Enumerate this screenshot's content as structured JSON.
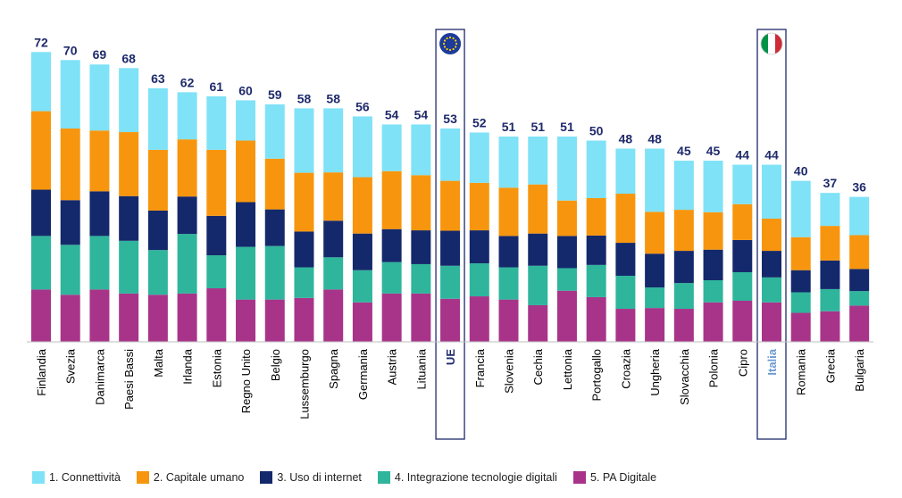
{
  "chart_data": {
    "type": "bar",
    "stacked": true,
    "title": "",
    "xlabel": "",
    "ylabel": "",
    "ylim": [
      0,
      72
    ],
    "grid": false,
    "legend_position": "bottom",
    "categories": [
      "Finlandia",
      "Svezia",
      "Danimarca",
      "Paesi Bassi",
      "Malta",
      "Irlanda",
      "Estonia",
      "Regno Unito",
      "Belgio",
      "Lussemburgo",
      "Spagna",
      "Germania",
      "Austria",
      "Lituania",
      "UE",
      "Francia",
      "Slovenia",
      "Cechia",
      "Lettonia",
      "Portogallo",
      "Croazia",
      "Ungheria",
      "Slovacchia",
      "Polonia",
      "Cipro",
      "Italia",
      "Romania",
      "Grecia",
      "Bulgaria"
    ],
    "totals": [
      72,
      70,
      69,
      68,
      63,
      62,
      61,
      60,
      59,
      58,
      58,
      56,
      54,
      54,
      53,
      52,
      51,
      51,
      51,
      50,
      48,
      48,
      45,
      45,
      44,
      44,
      40,
      37,
      36
    ],
    "total_labels": [
      "72",
      "70",
      "69",
      "68",
      "63",
      "62",
      "61",
      "60",
      "59",
      "58",
      "58",
      "56",
      "54",
      "54",
      "53",
      "52",
      "51",
      "51",
      "51",
      "50",
      "48",
      "48",
      "45",
      "45",
      "44",
      "44",
      "40",
      "37",
      "36"
    ],
    "highlight": {
      "eu": "UE",
      "italy": "Italia"
    },
    "series": [
      {
        "name": "5. PA Digitale",
        "color": "#a8348a",
        "values": [
          13,
          11.7,
          13,
          12,
          11.7,
          12,
          13.3,
          10.5,
          10.5,
          10.9,
          13,
          9.8,
          12,
          12,
          10.7,
          11.3,
          10.5,
          9.1,
          12.7,
          11.1,
          8.2,
          8.4,
          8.2,
          9.8,
          10.2,
          9.8,
          7.2,
          7.6,
          9
        ]
      },
      {
        "name": "4. Integrazione tecnologie digitali",
        "color": "#2fb59c",
        "values": [
          13.3,
          12.4,
          13.3,
          13.1,
          11.1,
          14.8,
          8.2,
          13.1,
          13.3,
          7.6,
          8,
          8,
          7.8,
          7.3,
          8.2,
          8.2,
          8,
          9.8,
          5.6,
          8,
          8.2,
          5.1,
          6.4,
          5.5,
          7.1,
          6.2,
          5.1,
          5.5,
          3.6
        ]
      },
      {
        "name": "3. Uso di internet",
        "color": "#14296b",
        "values": [
          11.5,
          11.1,
          11.1,
          11.1,
          9.8,
          9.3,
          9.8,
          11.1,
          9.1,
          8.9,
          9.1,
          9.1,
          8.2,
          8.4,
          8.7,
          8.2,
          7.8,
          8,
          8,
          7.3,
          8.2,
          8.4,
          8,
          7.6,
          8,
          6.6,
          5.5,
          7.1,
          5.5
        ]
      },
      {
        "name": "2. Capitale umano",
        "color": "#f7960e",
        "values": [
          19.5,
          17.8,
          15.1,
          15.9,
          15.1,
          14.2,
          16.4,
          15.3,
          12.6,
          14.6,
          12,
          14,
          14.4,
          13.7,
          12.4,
          11.8,
          12,
          12.2,
          8.8,
          9.3,
          12.2,
          10.4,
          10.2,
          9.3,
          8.9,
          8,
          8.2,
          8.6,
          8.4
        ]
      },
      {
        "name": "1. Connettività",
        "color": "#7fe2f7",
        "values": [
          14.7,
          17,
          16.4,
          15.9,
          15.3,
          11.7,
          13.3,
          10,
          13.5,
          16,
          15.9,
          15.1,
          11.6,
          12.6,
          13,
          12.5,
          12.7,
          11.9,
          15.9,
          14.3,
          11.2,
          15.7,
          12.2,
          12.8,
          9.8,
          13.4,
          14,
          8.2,
          9.5
        ]
      }
    ],
    "legend": [
      "1. Connettività",
      "2. Capitale umano",
      "3. Uso di internet",
      "4. Integrazione tecnologie digitali",
      "5. PA Digitale"
    ]
  },
  "colors": {
    "connettivita": "#7fe2f7",
    "capitale_umano": "#f7960e",
    "uso_internet": "#14296b",
    "integrazione": "#2fb59c",
    "pa_digitale": "#a8348a",
    "total_label": "#1f2a6b",
    "highlight_frame": "#1f2a6b",
    "italia_label": "#6b9ad1"
  },
  "icons": {
    "eu": "eu-flag-icon",
    "italy": "italy-flag-icon"
  }
}
